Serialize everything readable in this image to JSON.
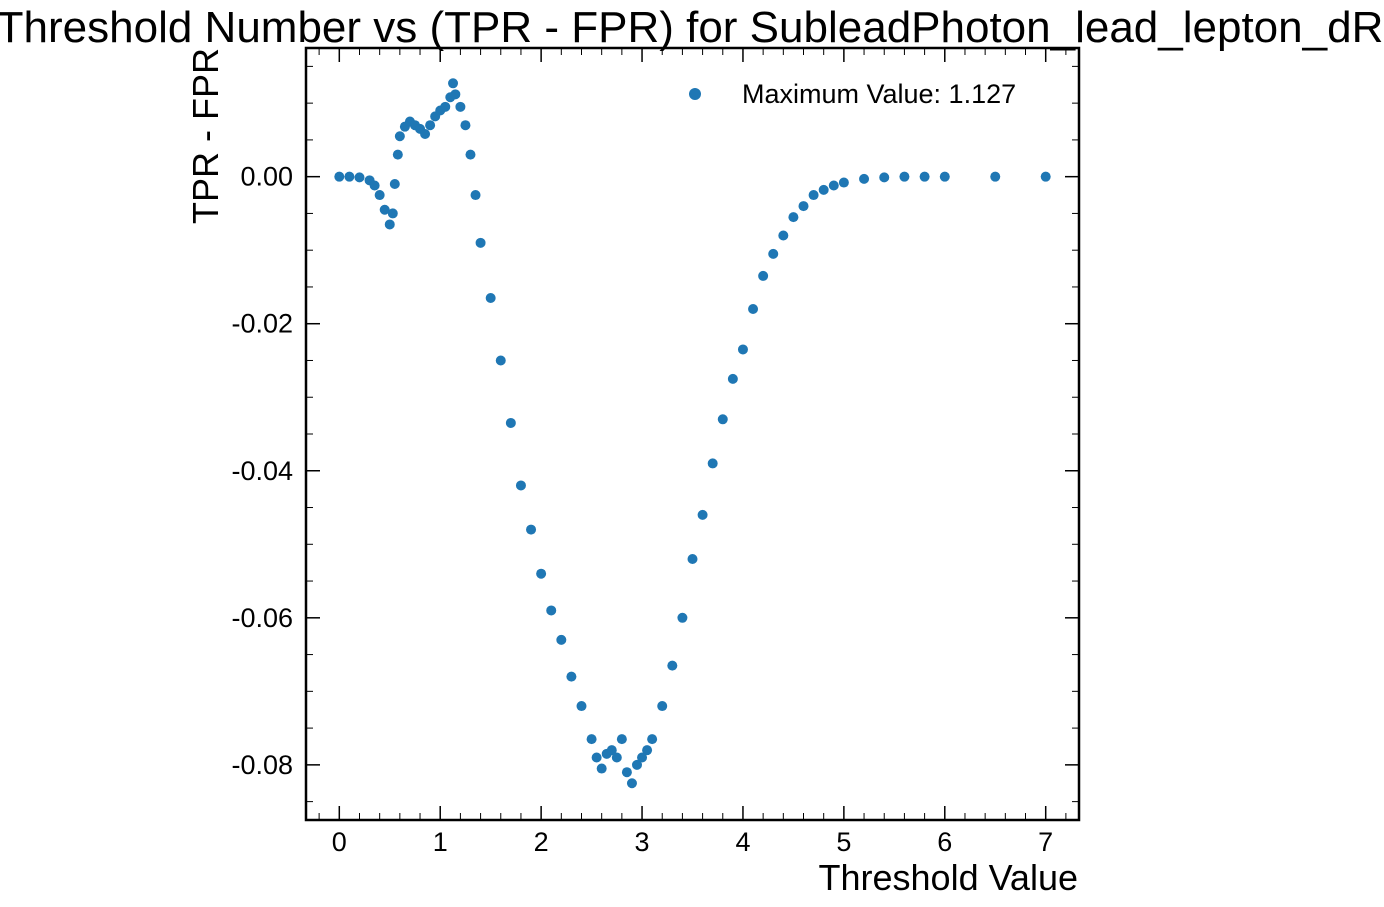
{
  "chart_data": {
    "type": "scatter",
    "title": "Threshold Number vs (TPR - FPR) for SubleadPhoton_lead_lepton_dR",
    "xlabel": "Threshold Value",
    "ylabel": "TPR - FPR",
    "xlim": [
      -0.33,
      7.33
    ],
    "ylim": [
      -0.0875,
      0.0175
    ],
    "x_ticks": [
      "0",
      "1",
      "2",
      "3",
      "4",
      "5",
      "6",
      "7"
    ],
    "x_tick_values": [
      0,
      1,
      2,
      3,
      4,
      5,
      6,
      7
    ],
    "y_ticks": [
      "0.00",
      "-0.02",
      "-0.04",
      "-0.06",
      "-0.08"
    ],
    "y_tick_values": [
      0.0,
      -0.02,
      -0.04,
      -0.06,
      -0.08
    ],
    "grid": false,
    "legend": {
      "placement": "top-right",
      "entries": [
        "Maximum Value: 1.127"
      ]
    },
    "marker_color": "#1f77b4",
    "series": [
      {
        "name": "Maximum Value: 1.127",
        "x": [
          0.0,
          0.1,
          0.2,
          0.3,
          0.35,
          0.4,
          0.45,
          0.5,
          0.53,
          0.55,
          0.58,
          0.6,
          0.65,
          0.7,
          0.75,
          0.8,
          0.85,
          0.9,
          0.95,
          1.0,
          1.05,
          1.1,
          1.127,
          1.15,
          1.2,
          1.25,
          1.3,
          1.35,
          1.4,
          1.5,
          1.6,
          1.7,
          1.8,
          1.9,
          2.0,
          2.1,
          2.2,
          2.3,
          2.4,
          2.5,
          2.55,
          2.6,
          2.65,
          2.7,
          2.75,
          2.8,
          2.85,
          2.9,
          2.95,
          3.0,
          3.05,
          3.1,
          3.2,
          3.3,
          3.4,
          3.5,
          3.6,
          3.7,
          3.8,
          3.9,
          4.0,
          4.1,
          4.2,
          4.3,
          4.4,
          4.5,
          4.6,
          4.7,
          4.8,
          4.9,
          5.0,
          5.2,
          5.4,
          5.6,
          5.8,
          6.0,
          6.5,
          7.0
        ],
        "y": [
          0.0,
          0.0,
          -0.0001,
          -0.0005,
          -0.0012,
          -0.0025,
          -0.0045,
          -0.0065,
          -0.005,
          -0.001,
          0.003,
          0.0055,
          0.0068,
          0.0075,
          0.007,
          0.0065,
          0.0058,
          0.007,
          0.0082,
          0.009,
          0.0095,
          0.0108,
          0.0127,
          0.0112,
          0.0095,
          0.007,
          0.003,
          -0.0025,
          -0.009,
          -0.0165,
          -0.025,
          -0.0335,
          -0.042,
          -0.048,
          -0.054,
          -0.059,
          -0.063,
          -0.068,
          -0.072,
          -0.0765,
          -0.079,
          -0.0805,
          -0.0785,
          -0.078,
          -0.079,
          -0.0765,
          -0.081,
          -0.0825,
          -0.08,
          -0.079,
          -0.078,
          -0.0765,
          -0.072,
          -0.0665,
          -0.06,
          -0.052,
          -0.046,
          -0.039,
          -0.033,
          -0.0275,
          -0.0235,
          -0.018,
          -0.0135,
          -0.0105,
          -0.008,
          -0.0055,
          -0.004,
          -0.0025,
          -0.0018,
          -0.0012,
          -0.0008,
          -0.0003,
          -0.0001,
          0.0,
          0.0,
          0.0,
          0.0,
          0.0
        ]
      }
    ]
  }
}
